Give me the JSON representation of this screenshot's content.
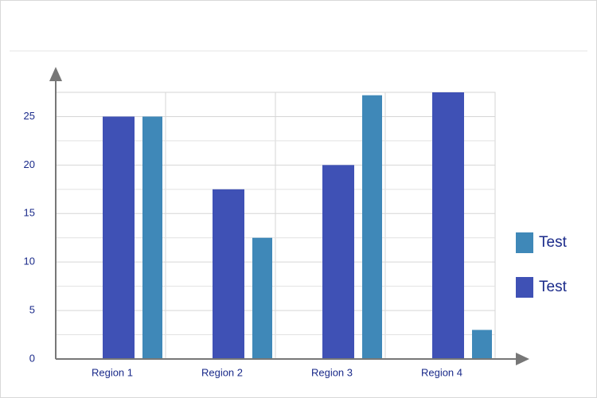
{
  "chart_data": {
    "type": "bar",
    "categories": [
      "Region 1",
      "Region 2",
      "Region 3",
      "Region 4"
    ],
    "series": [
      {
        "name": "Test",
        "color": "#3f88b8",
        "values": [
          25,
          12.5,
          27.2,
          3
        ]
      },
      {
        "name": "Test",
        "color": "#3f51b5",
        "values": [
          25,
          17.5,
          20,
          27.5
        ]
      }
    ],
    "ylim": [
      0,
      27.5
    ],
    "yticks": [
      0,
      5,
      10,
      15,
      20,
      25
    ],
    "grid": true
  }
}
